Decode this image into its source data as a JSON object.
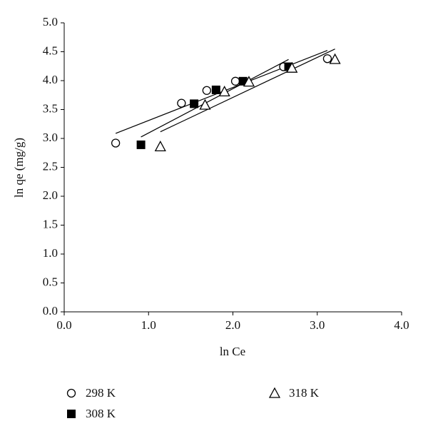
{
  "chart_data": {
    "type": "scatter",
    "x_label": "ln Ce",
    "y_label": "ln qe (mg/g)",
    "xlim": [
      0,
      4
    ],
    "ylim": [
      0,
      5
    ],
    "xticks": [
      {
        "value": 0,
        "label": "0.0"
      },
      {
        "value": 1,
        "label": "1.0"
      },
      {
        "value": 2,
        "label": "2.0"
      },
      {
        "value": 3,
        "label": "3.0"
      },
      {
        "value": 4,
        "label": "4.0"
      }
    ],
    "yticks": [
      {
        "value": 0,
        "label": "0.0"
      },
      0.5,
      {
        "value": 1,
        "label": "1.0"
      },
      1.5,
      {
        "value": 2,
        "label": "2.0"
      },
      2.5,
      {
        "value": 3,
        "label": "3.0"
      },
      3.5,
      {
        "value": 4,
        "label": "4.0"
      },
      4.5,
      {
        "value": 5,
        "label": "5.0"
      }
    ],
    "trendline": true,
    "series": [
      {
        "name": "298 K",
        "marker": "circle",
        "color": "#000000",
        "x": [
          0.61,
          1.39,
          1.69,
          2.03,
          2.6,
          3.12
        ],
        "values": [
          2.92,
          3.61,
          3.83,
          3.99,
          4.24,
          4.38
        ]
      },
      {
        "name": "308 K",
        "marker": "square",
        "color": "#000000",
        "x": [
          0.91,
          1.54,
          1.8,
          2.12,
          2.66
        ],
        "values": [
          2.89,
          3.6,
          3.84,
          3.99,
          4.24
        ]
      },
      {
        "name": "318 K",
        "marker": "triangle",
        "color": "#000000",
        "x": [
          1.14,
          1.67,
          1.9,
          2.19,
          2.7,
          3.21
        ],
        "values": [
          2.86,
          3.58,
          3.81,
          3.98,
          4.22,
          4.37
        ]
      }
    ]
  }
}
